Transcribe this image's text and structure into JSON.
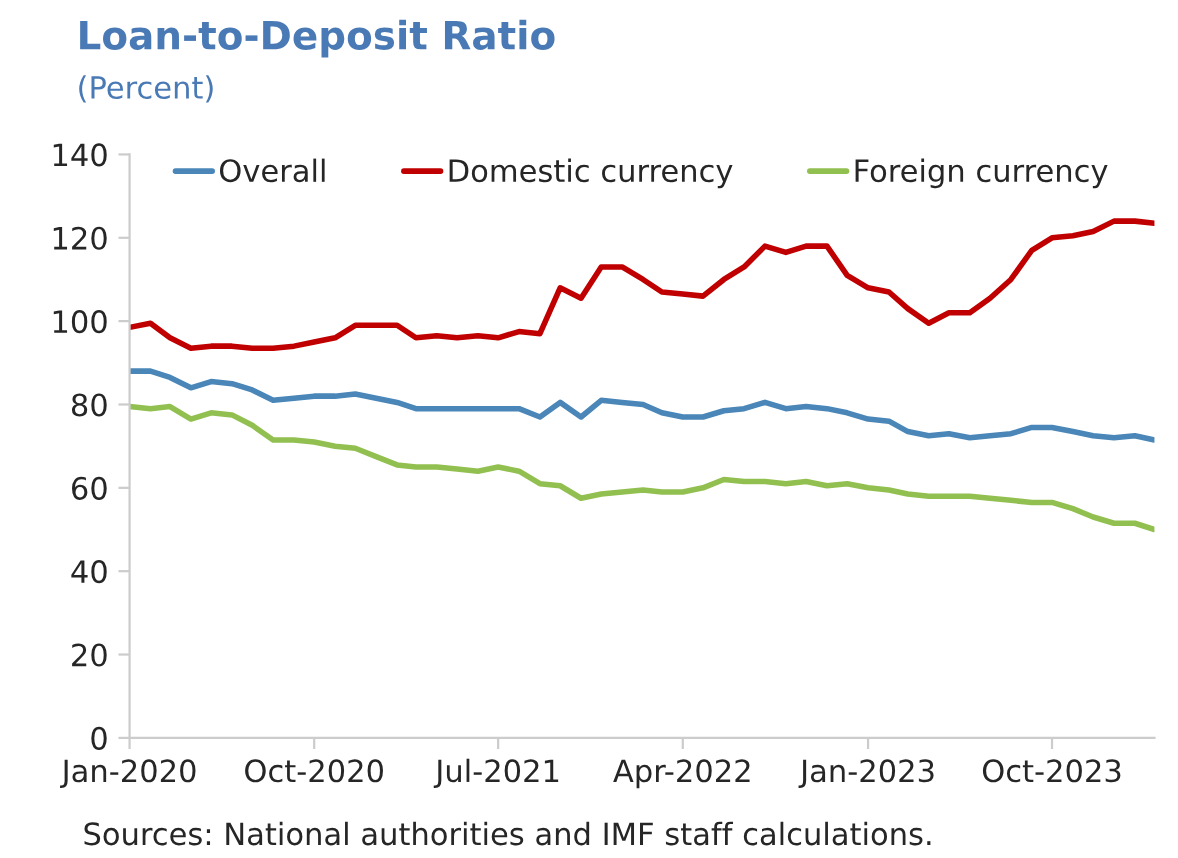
{
  "chart_data": {
    "type": "line",
    "title": "Loan-to-Deposit Ratio",
    "subtitle": "(Percent)",
    "annotations": [
      "Sources: National authorities and IMF staff calculations."
    ],
    "x": [
      "2020-01",
      "2020-02",
      "2020-03",
      "2020-04",
      "2020-05",
      "2020-06",
      "2020-07",
      "2020-08",
      "2020-09",
      "2020-10",
      "2020-11",
      "2020-12",
      "2021-01",
      "2021-02",
      "2021-03",
      "2021-04",
      "2021-05",
      "2021-06",
      "2021-07",
      "2021-08",
      "2021-09",
      "2021-10",
      "2021-11",
      "2021-12",
      "2022-01",
      "2022-02",
      "2022-03",
      "2022-04",
      "2022-05",
      "2022-06",
      "2022-07",
      "2022-08",
      "2022-09",
      "2022-10",
      "2022-11",
      "2022-12",
      "2023-01",
      "2023-02",
      "2023-03",
      "2023-04",
      "2023-05",
      "2023-06",
      "2023-07",
      "2023-08",
      "2023-09",
      "2023-10",
      "2023-11",
      "2023-12",
      "2024-01",
      "2024-02",
      "2024-03"
    ],
    "series": [
      {
        "name": "Overall",
        "color": "#4a86b8",
        "values": [
          88,
          88,
          86.5,
          84,
          85.5,
          85,
          83.5,
          81,
          81.5,
          82,
          82,
          82.5,
          81.5,
          80.5,
          79,
          79,
          79,
          79,
          79,
          79,
          77,
          80.5,
          77,
          81,
          80.5,
          80,
          78,
          77,
          77,
          78.5,
          79,
          80.5,
          79,
          79.5,
          79,
          78,
          76.5,
          76,
          73.5,
          72.5,
          73,
          72,
          72.5,
          73,
          74.5,
          74.5,
          73.5,
          72.5,
          72,
          72.5,
          71.5
        ]
      },
      {
        "name": "Domestic currency",
        "color": "#c00000",
        "values": [
          98.5,
          99.5,
          96,
          93.5,
          94,
          94,
          93.5,
          93.5,
          94,
          95,
          96,
          99,
          99,
          99,
          96,
          96.5,
          96,
          96.5,
          96,
          97.5,
          97,
          108,
          105.5,
          113,
          113,
          110,
          107,
          106.5,
          106,
          110,
          113,
          118,
          116.5,
          118,
          118,
          111,
          108,
          107,
          103,
          99.5,
          102,
          102,
          105.5,
          110,
          117,
          120,
          120.5,
          121.5,
          124,
          124,
          123.5
        ]
      },
      {
        "name": "Foreign currency",
        "color": "#92c050",
        "values": [
          79.5,
          79,
          79.5,
          76.5,
          78,
          77.5,
          75,
          71.5,
          71.5,
          71,
          70,
          69.5,
          67.5,
          65.5,
          65,
          65,
          64.5,
          64,
          65,
          64,
          61,
          60.5,
          57.5,
          58.5,
          59,
          59.5,
          59,
          59,
          60,
          62,
          61.5,
          61.5,
          61,
          61.5,
          60.5,
          61,
          60,
          59.5,
          58.5,
          58,
          58,
          58,
          57.5,
          57,
          56.5,
          56.5,
          55,
          53,
          51.5,
          51.5,
          50
        ]
      }
    ],
    "xlim": [
      "2020-01",
      "2024-03"
    ],
    "xticks": [
      {
        "value": "2020-01",
        "label": "Jan-2020"
      },
      {
        "value": "2020-10",
        "label": "Oct-2020"
      },
      {
        "value": "2021-07",
        "label": "Jul-2021"
      },
      {
        "value": "2022-04",
        "label": "Apr-2022"
      },
      {
        "value": "2023-01",
        "label": "Jan-2023"
      },
      {
        "value": "2023-10",
        "label": "Oct-2023"
      }
    ],
    "ylim": [
      0,
      140
    ],
    "yticks": [
      0,
      20,
      40,
      60,
      80,
      100,
      120,
      140
    ],
    "grid": false,
    "legend": "top",
    "marker": "none",
    "line_style": "solid"
  }
}
